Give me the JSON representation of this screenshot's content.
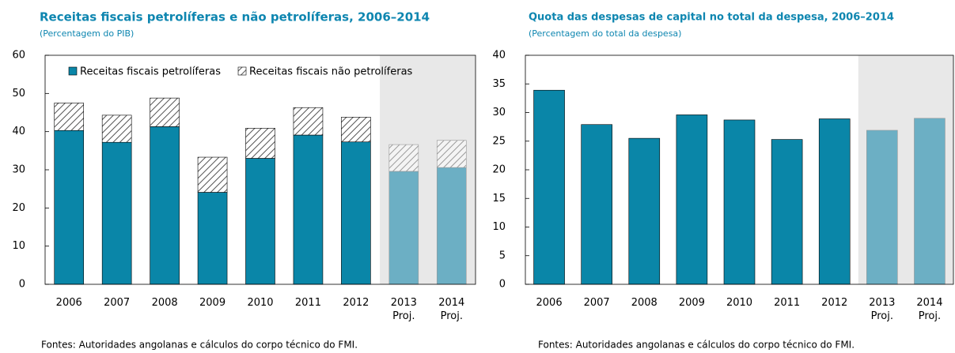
{
  "chart_data": [
    {
      "type": "stacked_bar",
      "title": "Receitas fiscais petrolíferas e não petrolíferas, 2006–2014",
      "subtitle": "(Percentagem do PIB)",
      "categories": [
        "2006",
        "2007",
        "2008",
        "2009",
        "2010",
        "2011",
        "2012",
        "2013 Proj.",
        "2014 Proj."
      ],
      "series": [
        {
          "name": "Receitas fiscais petrolíferas",
          "color": "#0a86a8",
          "projected_color": "#6cafc4",
          "values": [
            40.3,
            37.2,
            41.3,
            24.1,
            33.0,
            39.1,
            37.3,
            29.6,
            30.6
          ]
        },
        {
          "name": "Receitas fiscais não petrolíferas",
          "color": "#555555",
          "projected_color": "#9a9a9a",
          "pattern": "hatch",
          "values": [
            7.2,
            7.1,
            7.5,
            9.2,
            7.9,
            7.2,
            6.5,
            7.0,
            7.1
          ]
        }
      ],
      "ylim": [
        0,
        60
      ],
      "yticks": [
        0,
        10,
        20,
        30,
        40,
        50,
        60
      ],
      "grid": false,
      "shaded_from": 7,
      "shade_color": "#e8e8e8",
      "legend": "top",
      "source": "Fontes: Autoridades angolanas e cálculos do corpo técnico do FMI."
    },
    {
      "type": "bar",
      "title": "Quota das despesas de capital no total da despesa, 2006–2014",
      "subtitle": "(Percentagem do total da despesa)",
      "categories": [
        "2006",
        "2007",
        "2008",
        "2009",
        "2010",
        "2011",
        "2012",
        "2013 Proj.",
        "2014 Proj."
      ],
      "values": [
        33.9,
        27.9,
        25.5,
        29.6,
        28.7,
        25.3,
        28.9,
        26.9,
        29.0
      ],
      "color": "#0a86a8",
      "projected_color": "#6cafc4",
      "ylim": [
        0,
        40
      ],
      "yticks": [
        0,
        5,
        10,
        15,
        20,
        25,
        30,
        35,
        40
      ],
      "grid": false,
      "shaded_from": 7,
      "shade_color": "#e8e8e8",
      "source": "Fontes: Autoridades angolanas e cálculos do corpo técnico do FMI."
    }
  ]
}
